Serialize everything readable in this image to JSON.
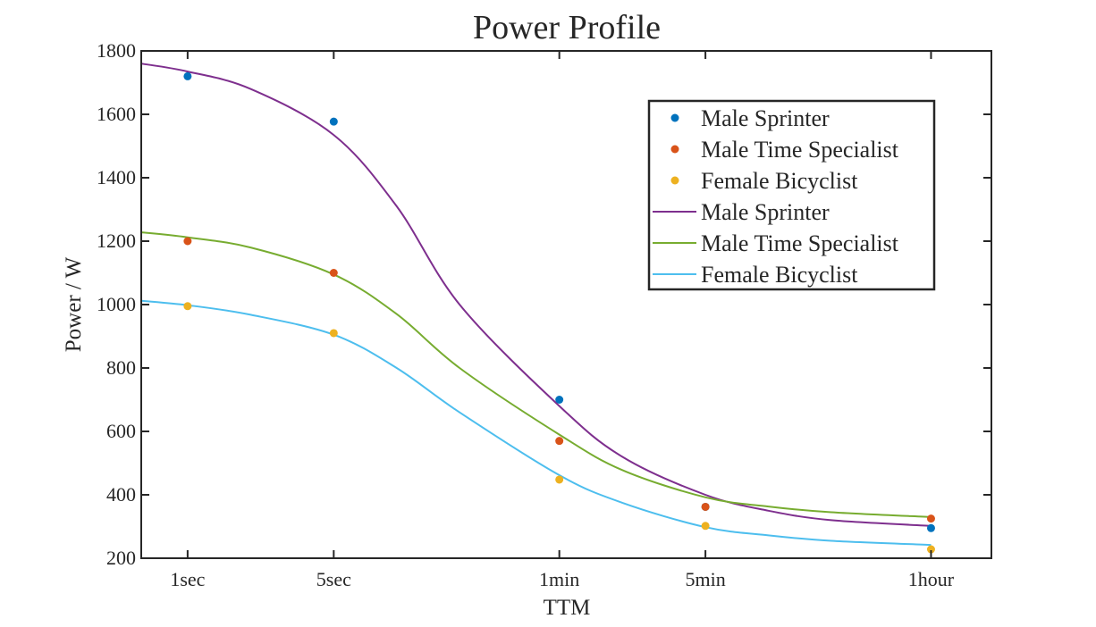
{
  "chart_data": {
    "type": "scatter",
    "title": "Power Profile",
    "xlabel": "TTM",
    "ylabel": "Power / W",
    "x_scale": "log",
    "x_ticks": [
      {
        "label": "1sec",
        "seconds": 1
      },
      {
        "label": "5sec",
        "seconds": 5
      },
      {
        "label": "1min",
        "seconds": 60
      },
      {
        "label": "5min",
        "seconds": 300
      },
      {
        "label": "1hour",
        "seconds": 3600
      }
    ],
    "xlim": [
      0.6,
      7000
    ],
    "ylim": [
      200,
      1800
    ],
    "y_ticks": [
      200,
      400,
      600,
      800,
      1000,
      1200,
      1400,
      1600,
      1800
    ],
    "grid": false,
    "legend_position": "top-right",
    "series": [
      {
        "name": "Male Sprinter",
        "kind": "points",
        "color": "#0072BD",
        "seconds": [
          1,
          5,
          60,
          300,
          3600
        ],
        "values": [
          1720,
          1577,
          700,
          362,
          295
        ]
      },
      {
        "name": "Male Time Specialist",
        "kind": "points",
        "color": "#D95319",
        "seconds": [
          1,
          5,
          60,
          300,
          3600
        ],
        "values": [
          1200,
          1100,
          570,
          362,
          325
        ]
      },
      {
        "name": "Female Bicyclist",
        "kind": "points",
        "color": "#EDB120",
        "seconds": [
          1,
          5,
          60,
          300,
          3600
        ],
        "values": [
          995,
          910,
          448,
          302,
          228
        ]
      },
      {
        "name": "Male Sprinter",
        "kind": "line",
        "color": "#7E2F8E",
        "seconds": [
          0.6,
          1,
          2,
          5,
          10,
          20,
          60,
          120,
          300,
          600,
          1200,
          3600
        ],
        "values": [
          1760,
          1735,
          1680,
          1535,
          1310,
          1000,
          680,
          520,
          400,
          350,
          320,
          302
        ]
      },
      {
        "name": "Male Time Specialist",
        "kind": "line",
        "color": "#77AC30",
        "seconds": [
          0.6,
          1,
          2,
          5,
          10,
          20,
          60,
          120,
          300,
          600,
          1200,
          3600
        ],
        "values": [
          1228,
          1212,
          1180,
          1095,
          970,
          800,
          590,
          478,
          392,
          363,
          345,
          330
        ]
      },
      {
        "name": "Female Bicyclist",
        "kind": "line",
        "color": "#4DBEEE",
        "seconds": [
          0.6,
          1,
          2,
          5,
          10,
          20,
          60,
          120,
          300,
          600,
          1200,
          3600
        ],
        "values": [
          1012,
          998,
          968,
          905,
          800,
          660,
          462,
          375,
          298,
          272,
          255,
          242
        ]
      }
    ]
  }
}
